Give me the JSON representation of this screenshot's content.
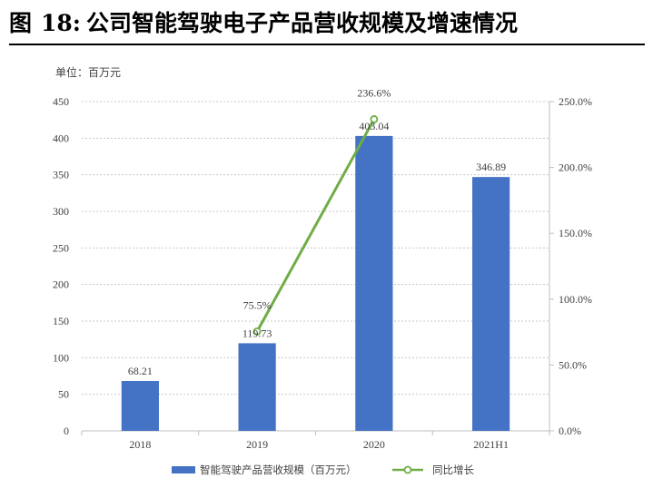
{
  "figure_title": {
    "prefix": "图",
    "number": "18:",
    "text": "公司智能驾驶电子产品营收规模及增速情况"
  },
  "unit_label": "单位：百万元",
  "chart_data": {
    "type": "bar",
    "categories": [
      "2018",
      "2019",
      "2020",
      "2021H1"
    ],
    "series": [
      {
        "name": "智能驾驶产品营收规模（百万元）",
        "type": "bar",
        "axis": "left",
        "values": [
          68.21,
          119.73,
          403.04,
          346.89
        ],
        "labels": [
          "68.21",
          "119.73",
          "403.04",
          "346.89"
        ],
        "color": "#4472C4"
      },
      {
        "name": "同比增长",
        "type": "line",
        "axis": "right",
        "values": [
          null,
          75.5,
          236.6,
          null
        ],
        "labels": [
          "",
          "75.5%",
          "236.6%",
          ""
        ],
        "color": "#70AD47"
      }
    ],
    "y_left": {
      "min": 0,
      "max": 450,
      "step": 50,
      "ticks": [
        "0",
        "50",
        "100",
        "150",
        "200",
        "250",
        "300",
        "350",
        "400",
        "450"
      ]
    },
    "y_right": {
      "min": 0,
      "max": 250,
      "step": 50,
      "ticks": [
        "0.0%",
        "50.0%",
        "100.0%",
        "150.0%",
        "200.0%",
        "250.0%"
      ]
    },
    "grid": true,
    "legend": "bottom"
  }
}
